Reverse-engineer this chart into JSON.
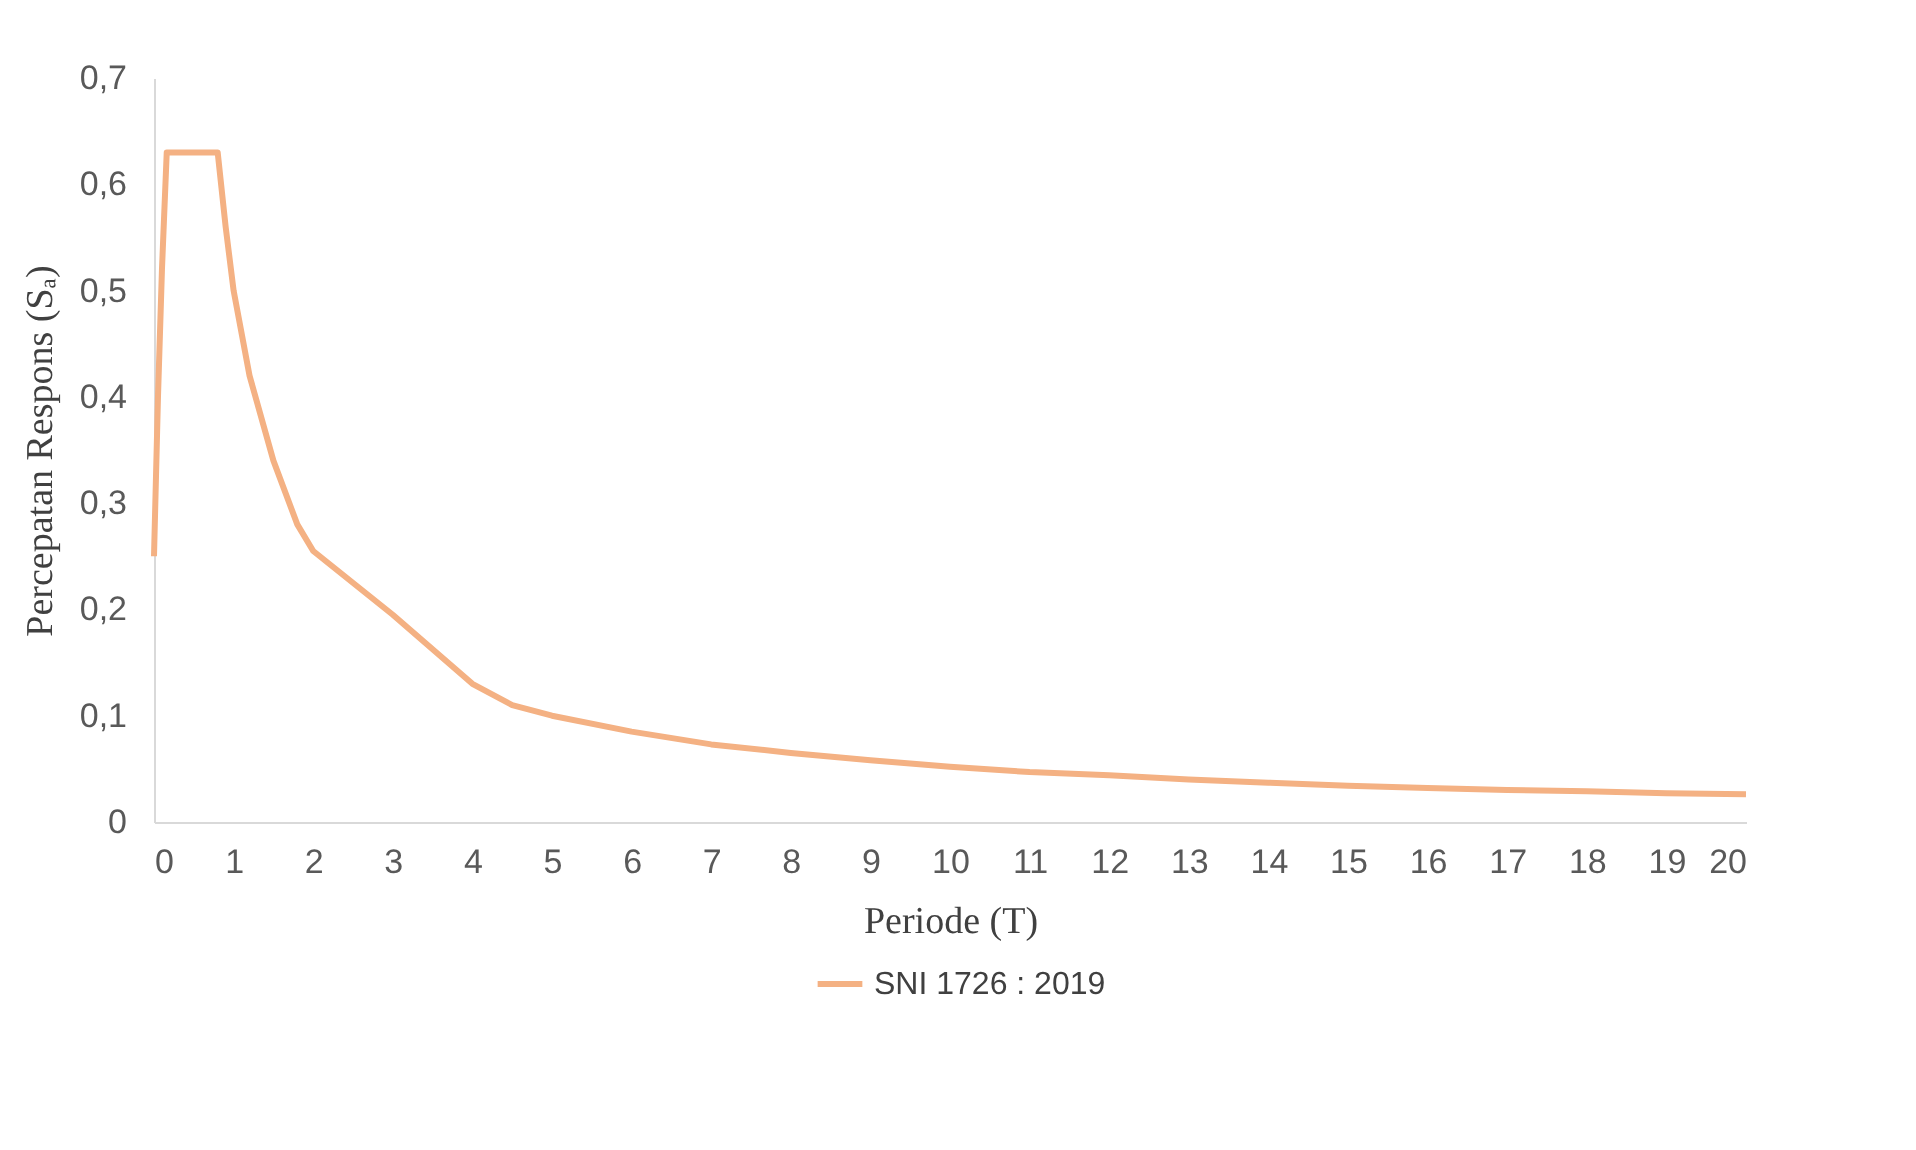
{
  "chart_data": {
    "type": "line",
    "xlabel": "Periode (T)",
    "ylabel": "Percepatan Respons (Sₐ)",
    "series": [
      {
        "name": "SNI 1726 : 2019",
        "color": "#f4b183",
        "x": [
          0,
          0.05,
          0.1,
          0.16,
          0.3,
          0.5,
          0.8,
          0.9,
          1,
          1.2,
          1.5,
          1.8,
          2,
          3,
          4,
          4.5,
          5,
          6,
          7,
          8,
          9,
          10,
          11,
          12,
          13,
          14,
          15,
          16,
          17,
          18,
          19,
          20
        ],
        "values": [
          0.25,
          0.4,
          0.52,
          0.63,
          0.63,
          0.63,
          0.63,
          0.56,
          0.5,
          0.42,
          0.34,
          0.28,
          0.255,
          0.195,
          0.13,
          0.11,
          0.1,
          0.085,
          0.073,
          0.065,
          0.058,
          0.052,
          0.047,
          0.044,
          0.04,
          0.037,
          0.034,
          0.032,
          0.03,
          0.029,
          0.027,
          0.026
        ]
      }
    ],
    "xlim": [
      0,
      20
    ],
    "xticks": [
      0,
      1,
      2,
      3,
      4,
      5,
      6,
      7,
      8,
      9,
      10,
      11,
      12,
      13,
      14,
      15,
      16,
      17,
      18,
      19,
      20
    ],
    "ylim": [
      0,
      0.7
    ],
    "yticks": [
      0,
      {
        "value": 0.1,
        "label": "0,1"
      },
      {
        "value": 0.2,
        "label": "0,2"
      },
      {
        "value": 0.3,
        "label": "0,3"
      },
      {
        "value": 0.4,
        "label": "0,4"
      },
      {
        "value": 0.5,
        "label": "0,5"
      },
      {
        "value": 0.6,
        "label": "0,6"
      },
      {
        "value": 0.7,
        "label": "0,7"
      }
    ],
    "grid": false,
    "legend": "bottom",
    "marker": "none",
    "line_style": "solid"
  }
}
